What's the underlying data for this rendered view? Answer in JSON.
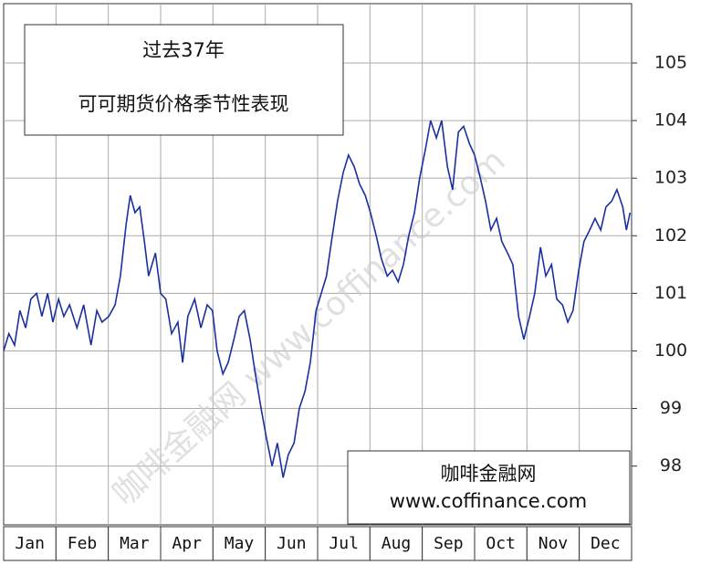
{
  "chart_data": {
    "type": "line",
    "title": "过去37年",
    "subtitle": "可可期货价格季节性表现",
    "watermark": "咖啡金融网 www.coffinance.com",
    "source_name": "咖啡金融网",
    "source_url": "www.coffinance.com",
    "categories": [
      "Jan",
      "Feb",
      "Mar",
      "Apr",
      "May",
      "Jun",
      "Jul",
      "Aug",
      "Sep",
      "Oct",
      "Nov",
      "Dec"
    ],
    "xlim": [
      0,
      12
    ],
    "ylim": [
      96.98,
      106.03
    ],
    "yticks": [
      98,
      99,
      100,
      101,
      102,
      103,
      104,
      105
    ],
    "grid": true,
    "series": [
      {
        "color": "#1a2fa0",
        "x": [
          0.0,
          0.1,
          0.21,
          0.31,
          0.42,
          0.52,
          0.63,
          0.73,
          0.84,
          0.94,
          1.05,
          1.15,
          1.26,
          1.4,
          1.53,
          1.67,
          1.78,
          1.88,
          2.01,
          2.13,
          2.23,
          2.34,
          2.42,
          2.51,
          2.6,
          2.69,
          2.77,
          2.9,
          3.0,
          3.1,
          3.21,
          3.33,
          3.42,
          3.52,
          3.65,
          3.77,
          3.89,
          3.99,
          4.08,
          4.19,
          4.29,
          4.4,
          4.5,
          4.6,
          4.71,
          4.81,
          4.92,
          5.02,
          5.13,
          5.23,
          5.34,
          5.44,
          5.55,
          5.65,
          5.76,
          5.86,
          5.97,
          6.07,
          6.17,
          6.28,
          6.38,
          6.49,
          6.59,
          6.7,
          6.8,
          6.91,
          7.01,
          7.12,
          7.22,
          7.33,
          7.43,
          7.54,
          7.64,
          7.74,
          7.85,
          7.95,
          8.06,
          8.16,
          8.27,
          8.37,
          8.48,
          8.58,
          8.69,
          8.79,
          8.9,
          9.0,
          9.11,
          9.21,
          9.31,
          9.42,
          9.52,
          9.63,
          9.73,
          9.84,
          9.94,
          10.05,
          10.15,
          10.26,
          10.36,
          10.47,
          10.57,
          10.68,
          10.78,
          10.88,
          10.99,
          11.09,
          11.2,
          11.3,
          11.41,
          11.51,
          11.62,
          11.72,
          11.83,
          11.9,
          11.97
        ],
        "values": [
          100.0,
          100.3,
          100.1,
          100.7,
          100.4,
          100.9,
          101.0,
          100.6,
          101.0,
          100.5,
          100.9,
          100.6,
          100.8,
          100.4,
          100.8,
          100.1,
          100.7,
          100.5,
          100.6,
          100.8,
          101.3,
          102.2,
          102.7,
          102.4,
          102.5,
          101.9,
          101.3,
          101.7,
          101.0,
          100.9,
          100.3,
          100.5,
          99.8,
          100.6,
          100.9,
          100.4,
          100.8,
          100.7,
          100.0,
          99.6,
          99.8,
          100.2,
          100.6,
          100.7,
          100.2,
          99.6,
          99.0,
          98.5,
          98.0,
          98.4,
          97.8,
          98.2,
          98.4,
          99.0,
          99.3,
          99.8,
          100.7,
          101.0,
          101.3,
          102.0,
          102.6,
          103.1,
          103.4,
          103.2,
          102.9,
          102.7,
          102.4,
          102.0,
          101.6,
          101.3,
          101.4,
          101.2,
          101.5,
          102.0,
          102.4,
          103.0,
          103.5,
          104.0,
          103.7,
          104.0,
          103.2,
          102.8,
          103.8,
          103.9,
          103.6,
          103.4,
          103.0,
          102.6,
          102.1,
          102.3,
          101.9,
          101.7,
          101.5,
          100.6,
          100.2,
          100.6,
          101.0,
          101.8,
          101.3,
          101.5,
          100.9,
          100.8,
          100.5,
          100.7,
          101.4,
          101.9,
          102.1,
          102.3,
          102.1,
          102.5,
          102.6,
          102.8,
          102.5,
          102.1,
          102.4
        ]
      }
    ]
  }
}
